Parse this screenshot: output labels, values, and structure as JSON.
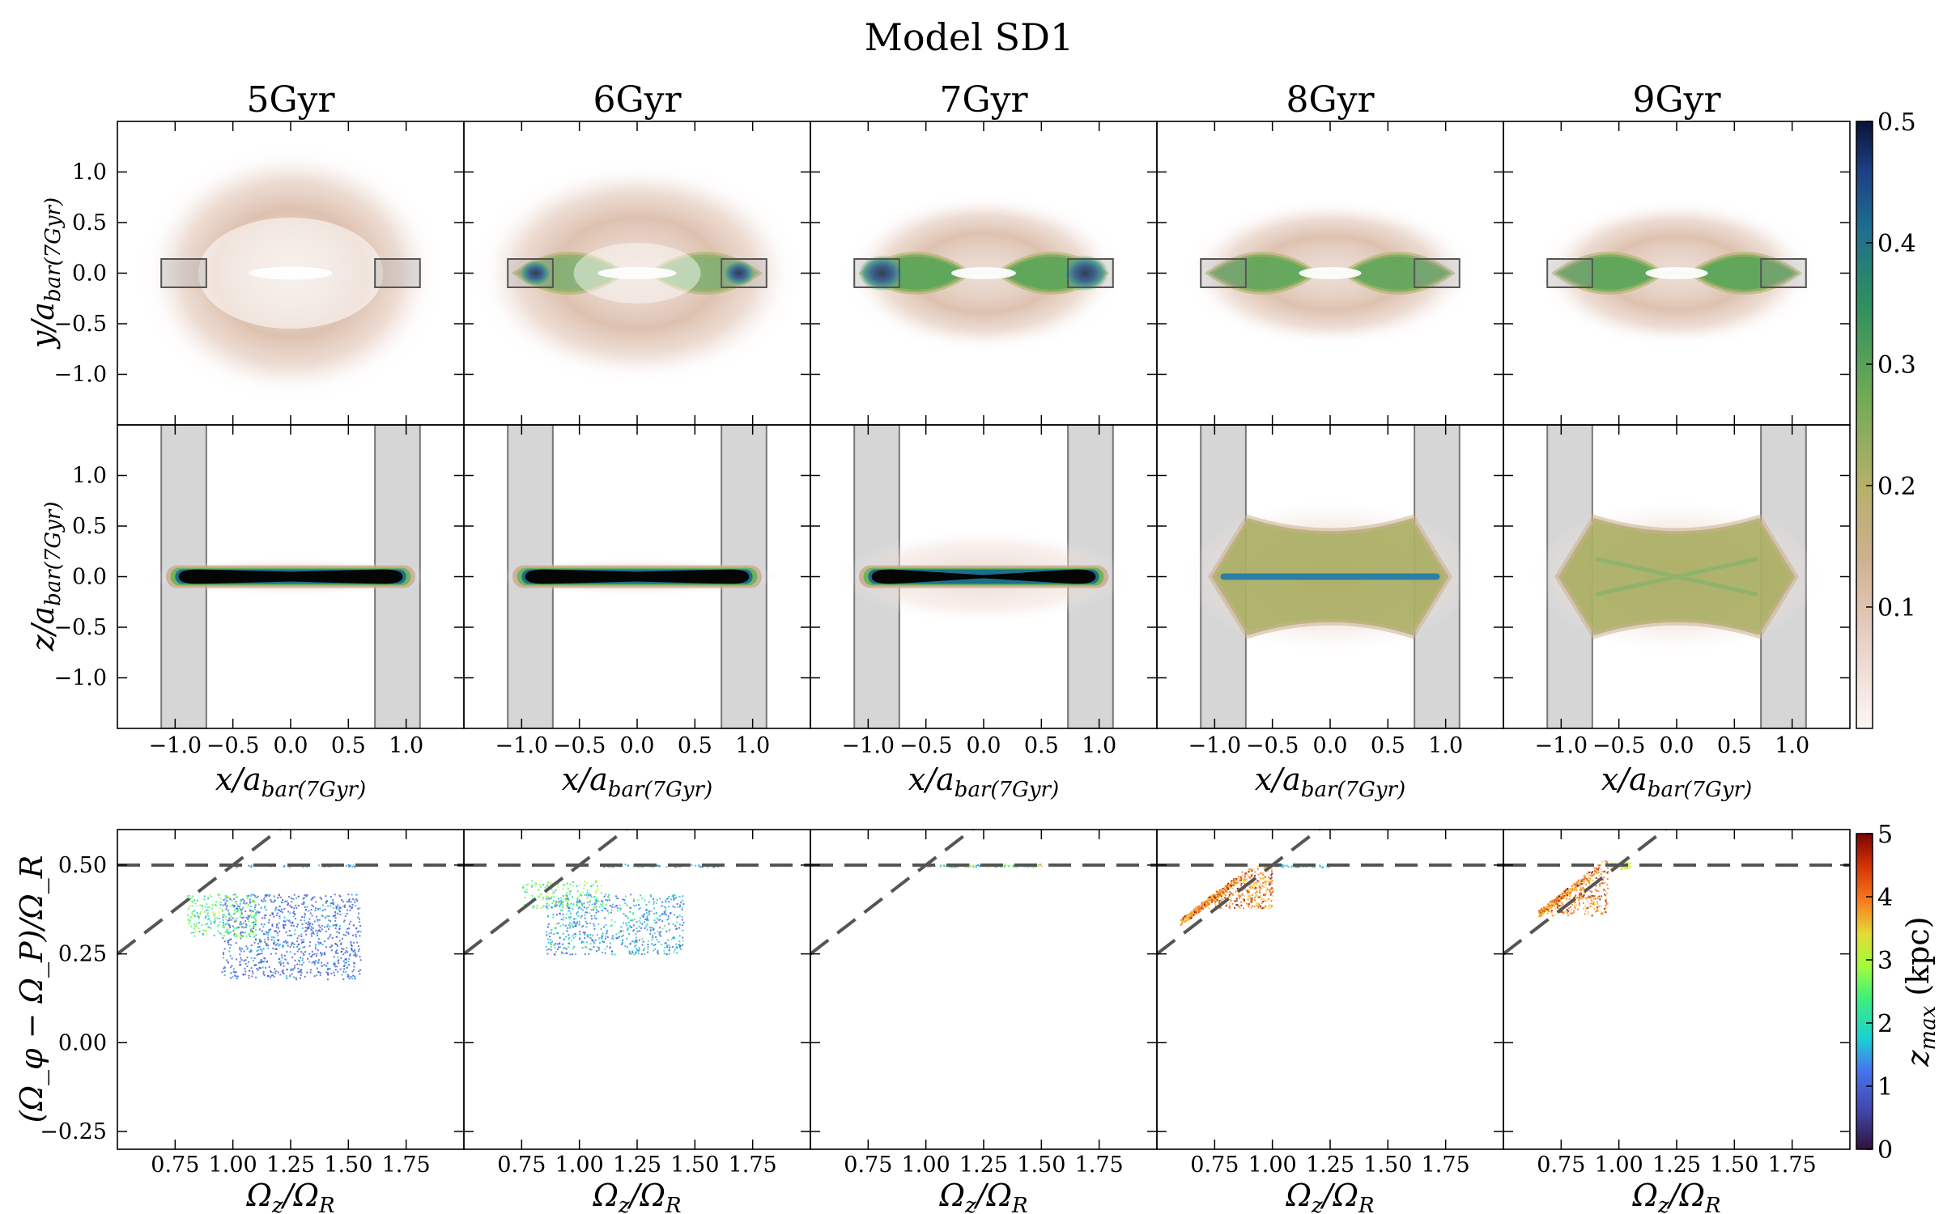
{
  "figure_title": "Model SD1",
  "columns": [
    "5Gyr",
    "6Gyr",
    "7Gyr",
    "8Gyr",
    "9Gyr"
  ],
  "row1": {
    "ylabel": "y/a_bar(7Gyr)",
    "ylabel_main": "y/a",
    "ylabel_sub": "bar(7Gyr)",
    "yticks": [
      "1.0",
      "0.5",
      "0.0",
      "−0.5",
      "−1.0"
    ],
    "ytick_values": [
      1.0,
      0.5,
      0.0,
      -0.5,
      -1.0
    ]
  },
  "row2": {
    "ylabel": "z/a_bar(7Gyr)",
    "ylabel_main": "z/a",
    "ylabel_sub": "bar(7Gyr)",
    "yticks": [
      "1.0",
      "0.5",
      "0.0",
      "−0.5",
      "−1.0"
    ],
    "ytick_values": [
      1.0,
      0.5,
      0.0,
      -0.5,
      -1.0
    ],
    "xlabel": "x/a_bar(7Gyr)",
    "xlabel_main": "x/a",
    "xlabel_sub": "bar(7Gyr)",
    "xticks": [
      "−1.0",
      "−0.5",
      "0.0",
      "0.5",
      "1.0"
    ],
    "xtick_values": [
      -1.0,
      -0.5,
      0.0,
      0.5,
      1.0
    ]
  },
  "row3": {
    "ylabel": "(Ω_φ − Ω_P)/Ω_R",
    "yticks": [
      "0.50",
      "0.25",
      "0.00",
      "−0.25"
    ],
    "ytick_values": [
      0.5,
      0.25,
      0.0,
      -0.25
    ],
    "xlabel": "Ω_z/Ω_R",
    "xlabel_main": "Ω",
    "xlabel_sub1": "z",
    "xlabel_mid": "/Ω",
    "xlabel_sub2": "R",
    "xticks": [
      "0.75",
      "1.00",
      "1.25",
      "1.50",
      "1.75"
    ],
    "xtick_values": [
      0.75,
      1.0,
      1.25,
      1.5,
      1.75
    ]
  },
  "colorbar_density": {
    "ticks": [
      "0.5",
      "0.4",
      "0.3",
      "0.2",
      "0.1"
    ],
    "tick_values": [
      0.5,
      0.4,
      0.3,
      0.2,
      0.1
    ],
    "range": [
      0,
      0.5
    ]
  },
  "colorbar_zmax": {
    "label": "z_max (kpc)",
    "label_main": "z",
    "label_sub": "max",
    "label_unit": " (kpc)",
    "ticks": [
      "5",
      "4",
      "3",
      "2",
      "1",
      "0"
    ],
    "tick_values": [
      5,
      4,
      3,
      2,
      1,
      0
    ],
    "range": [
      0,
      5
    ]
  },
  "chart_data": [
    {
      "type": "heatmap",
      "name": "face-on density (x-y)",
      "panels": [
        "5Gyr",
        "6Gyr",
        "7Gyr",
        "8Gyr",
        "9Gyr"
      ],
      "xlim": [
        -1.5,
        1.5
      ],
      "ylim": [
        -1.5,
        1.5
      ],
      "selection_boxes_x": [
        [
          -1.12,
          -0.73
        ],
        [
          0.73,
          1.12
        ]
      ],
      "selection_boxes_y": [
        -0.14,
        0.14
      ]
    },
    {
      "type": "heatmap",
      "name": "edge-on density (x-z)",
      "panels": [
        "5Gyr",
        "6Gyr",
        "7Gyr",
        "8Gyr",
        "9Gyr"
      ],
      "xlim": [
        -1.5,
        1.5
      ],
      "ylim": [
        -1.5,
        1.5
      ],
      "shaded_x_bands": [
        [
          -1.12,
          -0.73
        ],
        [
          0.73,
          1.12
        ]
      ]
    },
    {
      "type": "scatter",
      "name": "frequency ratios colored by z_max",
      "panels": [
        "5Gyr",
        "6Gyr",
        "7Gyr",
        "8Gyr",
        "9Gyr"
      ],
      "xlim": [
        0.5,
        2.0
      ],
      "ylim": [
        -0.3,
        0.6
      ],
      "reference_lines": [
        {
          "kind": "horizontal",
          "y": 0.5
        },
        {
          "kind": "diagonal",
          "slope": 0.5,
          "intercept": 0.0
        }
      ]
    }
  ]
}
